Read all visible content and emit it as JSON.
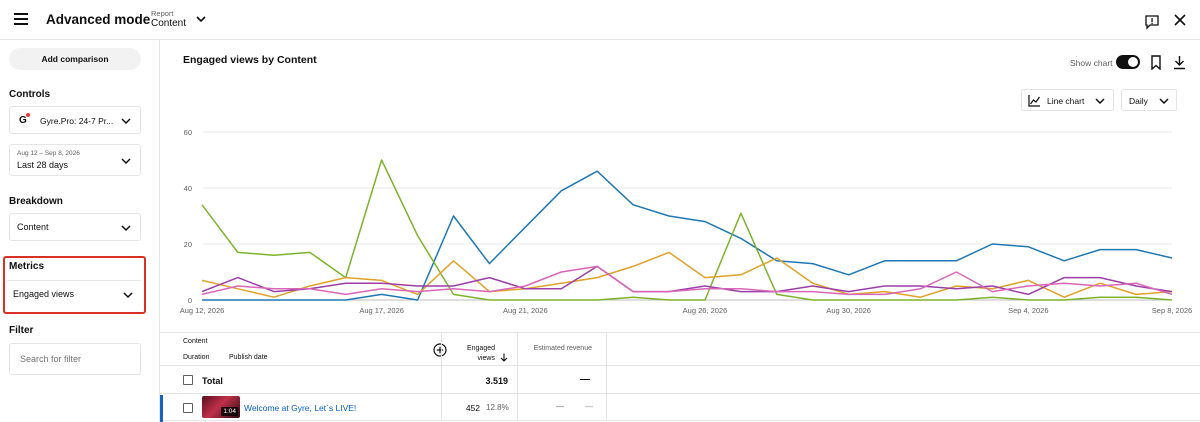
{
  "header": {
    "app_title": "Advanced mode",
    "report_label": "Report",
    "report_value": "Content"
  },
  "sidebar": {
    "add_comparison": "Add comparison",
    "controls_label": "Controls",
    "channel_logo": "G",
    "channel_name": "Gyre.Pro: 24-7 Pr...",
    "date_range": "Aug 12 – Sep 8, 2026",
    "date_value": "Last 28 days",
    "breakdown_label": "Breakdown",
    "breakdown_value": "Content",
    "metrics_label": "Metrics",
    "metrics_value": "Engaged views",
    "filter_label": "Filter",
    "filter_placeholder": "Search for filter"
  },
  "main": {
    "chart_title": "Engaged views by Content",
    "show_chart_label": "Show chart",
    "show_chart_on": true,
    "chart_type_label": "Line chart",
    "interval_label": "Daily"
  },
  "chart_data": {
    "type": "line",
    "title": "",
    "xlabel": "",
    "ylabel": "",
    "ylim": [
      0,
      60
    ],
    "yticks": [
      0,
      20,
      40,
      60
    ],
    "grid": true,
    "x": [
      "Aug 12",
      "Aug 13",
      "Aug 14",
      "Aug 15",
      "Aug 16",
      "Aug 17",
      "Aug 18",
      "Aug 19",
      "Aug 20",
      "Aug 21",
      "Aug 22",
      "Aug 23",
      "Aug 24",
      "Aug 25",
      "Aug 26",
      "Aug 27",
      "Aug 28",
      "Aug 29",
      "Aug 30",
      "Aug 31",
      "Sep 1",
      "Sep 2",
      "Sep 3",
      "Sep 4",
      "Sep 5",
      "Sep 6",
      "Sep 7",
      "Sep 8"
    ],
    "xtick_labels": [
      {
        "index": 0,
        "label": "Aug 12, 2026"
      },
      {
        "index": 5,
        "label": "Aug 17, 2026"
      },
      {
        "index": 9,
        "label": "Aug 21, 2026"
      },
      {
        "index": 14,
        "label": "Aug 26, 2026"
      },
      {
        "index": 18,
        "label": "Aug 30, 2026"
      },
      {
        "index": 23,
        "label": "Sep 4, 2026"
      },
      {
        "index": 27,
        "label": "Sep 8, 2026"
      }
    ],
    "series": [
      {
        "color": "#1f77b4",
        "values": [
          0,
          0,
          0,
          0,
          0,
          2,
          0,
          30,
          13,
          26,
          39,
          46,
          34,
          30,
          28,
          22,
          14,
          13,
          9,
          14,
          14,
          14,
          20,
          19,
          14,
          18,
          18,
          15
        ]
      },
      {
        "color": "#7cb32b",
        "values": [
          34,
          17,
          16,
          17,
          8,
          50,
          23,
          2,
          0,
          0,
          0,
          0,
          1,
          0,
          0,
          31,
          2,
          0,
          0,
          0,
          0,
          0,
          1,
          0,
          0,
          1,
          1,
          0
        ]
      },
      {
        "color": "#e0a128",
        "values": [
          7,
          4,
          1,
          5,
          8,
          7,
          2,
          14,
          3,
          4,
          6,
          8,
          12,
          17,
          8,
          9,
          15,
          6,
          2,
          3,
          1,
          5,
          4,
          7,
          1,
          6,
          2,
          3
        ]
      },
      {
        "color": "#9c3ea8",
        "values": [
          3,
          8,
          3,
          4,
          6,
          6,
          5,
          5,
          8,
          4,
          4,
          12,
          3,
          3,
          5,
          3,
          3,
          5,
          3,
          5,
          5,
          4,
          5,
          2,
          8,
          8,
          5,
          3
        ]
      },
      {
        "color": "#d867b8",
        "values": [
          2,
          5,
          4,
          4,
          2,
          4,
          3,
          4,
          3,
          5,
          10,
          12,
          3,
          3,
          4,
          4,
          3,
          3,
          2,
          2,
          4,
          10,
          3,
          5,
          6,
          5,
          6,
          2
        ]
      }
    ]
  },
  "table": {
    "header_content": "Content",
    "header_duration": "Duration",
    "header_publish": "Publish date",
    "header_engaged": "Engaged views",
    "header_revenue": "Estimated revenue",
    "total_label": "Total",
    "total_value": "3.519",
    "total_revenue": "—",
    "rows": [
      {
        "duration": "1:04",
        "title": "Welcome at Gyre, Let`s LIVE!",
        "views": "452",
        "pct": "12.8%",
        "revenue": "—",
        "revenue2": "—"
      }
    ]
  }
}
